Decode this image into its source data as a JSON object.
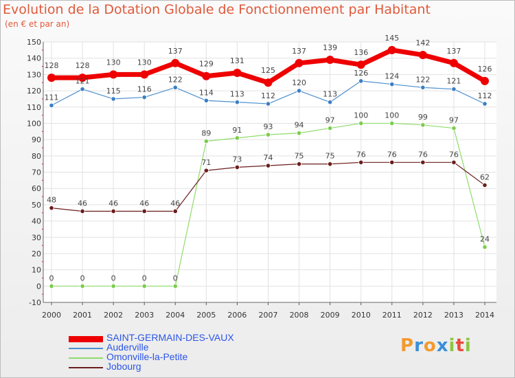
{
  "chart_data": {
    "type": "line",
    "title": "Evolution de la Dotation Globale de Fonctionnement par Habitant",
    "subtitle": "(en € et par an)",
    "x": [
      "2000",
      "2001",
      "2002",
      "2003",
      "2004",
      "2005",
      "2006",
      "2007",
      "2008",
      "2009",
      "2010",
      "2011",
      "2012",
      "2013",
      "2014"
    ],
    "y_ticks": [
      "-10",
      "0",
      "10",
      "20",
      "30",
      "40",
      "50",
      "60",
      "70",
      "80",
      "90",
      "100",
      "110",
      "120",
      "130",
      "140",
      "150"
    ],
    "ylim": [
      -10,
      150
    ],
    "grid": true,
    "legend_position": "bottom-left",
    "series": [
      {
        "name": "SAINT-GERMAIN-DES-VAUX",
        "color": "#ee0000",
        "values": [
          128,
          128,
          130,
          130,
          137,
          129,
          131,
          125,
          137,
          139,
          136,
          145,
          142,
          137,
          126
        ],
        "labels": [
          "128",
          "128",
          "130",
          "130",
          "137",
          "129",
          "131",
          "125",
          "137",
          "139",
          "136",
          "145",
          "142",
          "137",
          "126"
        ]
      },
      {
        "name": "Auderville",
        "color": "#4c8fcf",
        "values": [
          111,
          121,
          115,
          116,
          122,
          114,
          113,
          112,
          120,
          113,
          126,
          124,
          122,
          121,
          112
        ],
        "labels": [
          "111",
          "121",
          "115",
          "116",
          "122",
          "114",
          "113",
          "112",
          "120",
          "113",
          "126",
          "124",
          "122",
          "121",
          "112"
        ]
      },
      {
        "name": "Omonville-la-Petite",
        "color": "#8fdc6a",
        "values": [
          0,
          0,
          0,
          0,
          0,
          89,
          91,
          93,
          94,
          97,
          100,
          100,
          99,
          97,
          24
        ],
        "labels": [
          "0",
          "0",
          "0",
          "0",
          "0",
          "89",
          "91",
          "93",
          "94",
          "97",
          "100",
          "100",
          "99",
          "97",
          "24"
        ]
      },
      {
        "name": "Jobourg",
        "color": "#6b1d1d",
        "values": [
          48,
          46,
          46,
          46,
          46,
          71,
          73,
          74,
          75,
          75,
          76,
          76,
          76,
          76,
          62
        ],
        "labels": [
          "48",
          "46",
          "46",
          "46",
          "46",
          "71",
          "73",
          "74",
          "75",
          "75",
          "76",
          "76",
          "76",
          "76",
          "62"
        ]
      }
    ]
  },
  "logo": {
    "letters": [
      "P",
      "r",
      "o",
      "x",
      "i",
      "t",
      "i"
    ],
    "colors": [
      "#f29a2e",
      "#3a8fd8",
      "#f29a2e",
      "#3a8fd8",
      "#8cc63f",
      "#e94b3c",
      "#8cc63f"
    ]
  }
}
